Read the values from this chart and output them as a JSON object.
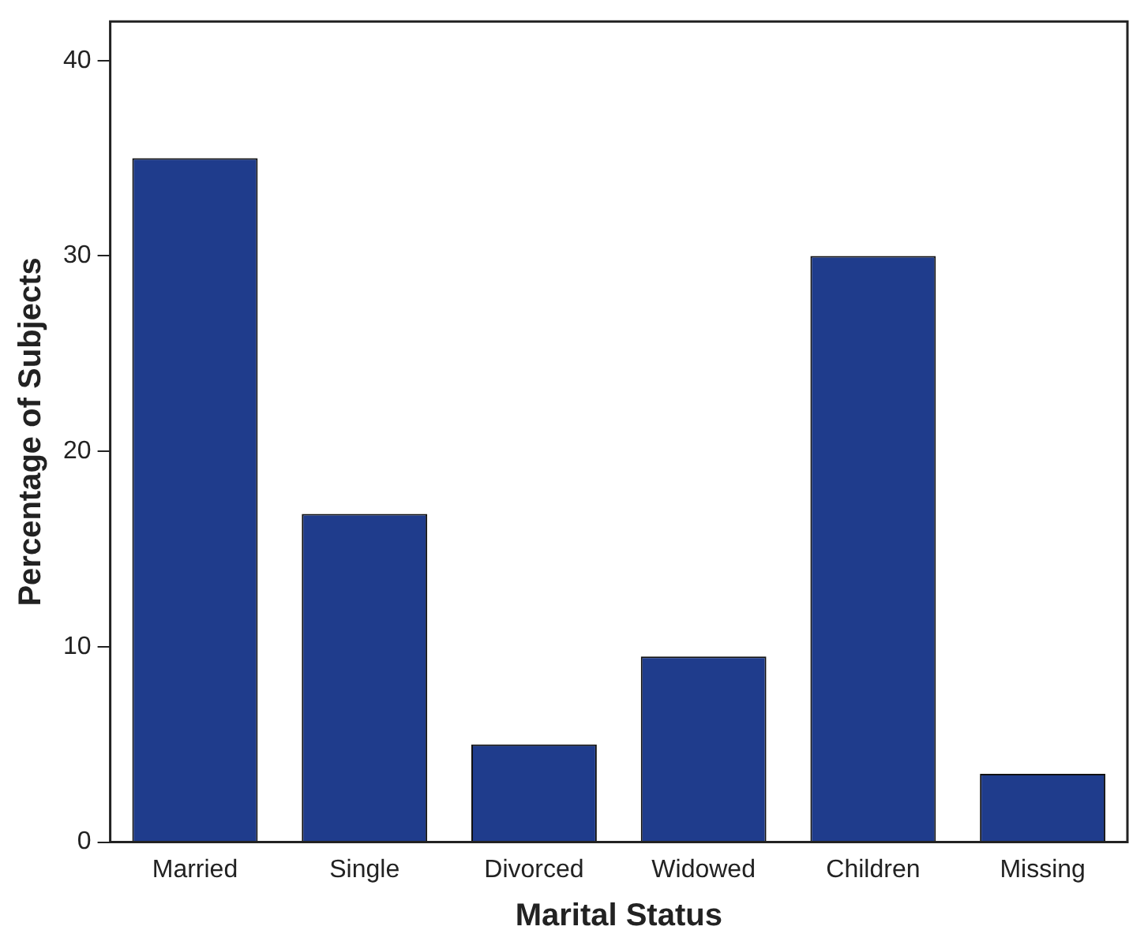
{
  "chart_data": {
    "type": "bar",
    "xlabel": "Marital Status",
    "ylabel": "Percentage of Subjects",
    "categories": [
      "Married",
      "Single",
      "Divorced",
      "Widowed",
      "Children",
      "Missing"
    ],
    "values": [
      35,
      16.8,
      5,
      9.5,
      30,
      3.5
    ],
    "color": "#1f3c8c",
    "ylim": [
      0,
      42
    ],
    "yticks": [
      0,
      10,
      20,
      30,
      40
    ],
    "grid": false,
    "legend": false
  }
}
